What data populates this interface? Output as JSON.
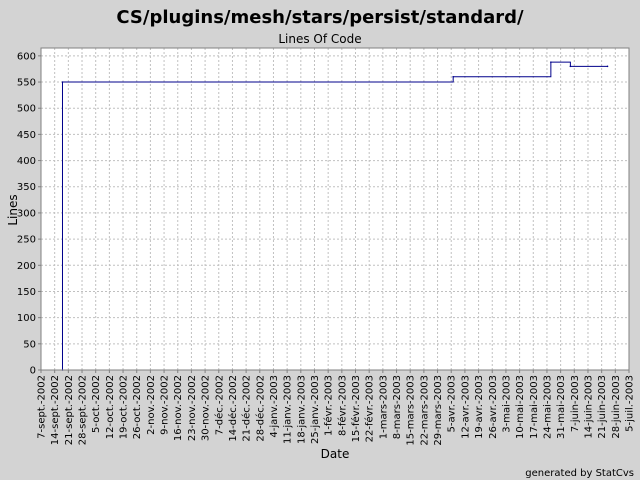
{
  "chart_data": {
    "type": "line",
    "title": "CS/plugins/mesh/stars/persist/standard/",
    "subtitle": "Lines Of Code",
    "xlabel": "Date",
    "ylabel": "Lines",
    "footer": "generated by StatCvs",
    "ylim": [
      0,
      615
    ],
    "yticks": [
      0,
      50,
      100,
      150,
      200,
      250,
      300,
      350,
      400,
      450,
      500,
      550,
      600
    ],
    "xlim": [
      "2002-09-07",
      "2003-07-05"
    ],
    "x_ticks": [
      {
        "date": "2002-09-07",
        "label": "7-sept.-2002"
      },
      {
        "date": "2002-09-14",
        "label": "14-sept.-2002"
      },
      {
        "date": "2002-09-21",
        "label": "21-sept.-2002"
      },
      {
        "date": "2002-09-28",
        "label": "28-sept.-2002"
      },
      {
        "date": "2002-10-05",
        "label": "5-oct.-2002"
      },
      {
        "date": "2002-10-12",
        "label": "12-oct.-2002"
      },
      {
        "date": "2002-10-19",
        "label": "19-oct.-2002"
      },
      {
        "date": "2002-10-26",
        "label": "26-oct.-2002"
      },
      {
        "date": "2002-11-02",
        "label": "2-nov.-2002"
      },
      {
        "date": "2002-11-09",
        "label": "9-nov.-2002"
      },
      {
        "date": "2002-11-16",
        "label": "16-nov.-2002"
      },
      {
        "date": "2002-11-23",
        "label": "23-nov.-2002"
      },
      {
        "date": "2002-11-30",
        "label": "30-nov.-2002"
      },
      {
        "date": "2002-12-07",
        "label": "7-déc.-2002"
      },
      {
        "date": "2002-12-14",
        "label": "14-déc.-2002"
      },
      {
        "date": "2002-12-21",
        "label": "21-déc.-2002"
      },
      {
        "date": "2002-12-28",
        "label": "28-déc.-2002"
      },
      {
        "date": "2003-01-04",
        "label": "4-janv.-2003"
      },
      {
        "date": "2003-01-11",
        "label": "11-janv.-2003"
      },
      {
        "date": "2003-01-18",
        "label": "18-janv.-2003"
      },
      {
        "date": "2003-01-25",
        "label": "25-janv.-2003"
      },
      {
        "date": "2003-02-01",
        "label": "1-févr.-2003"
      },
      {
        "date": "2003-02-08",
        "label": "8-févr.-2003"
      },
      {
        "date": "2003-02-15",
        "label": "15-févr.-2003"
      },
      {
        "date": "2003-02-22",
        "label": "22-févr.-2003"
      },
      {
        "date": "2003-03-01",
        "label": "1-mars-2003"
      },
      {
        "date": "2003-03-08",
        "label": "8-mars-2003"
      },
      {
        "date": "2003-03-15",
        "label": "15-mars-2003"
      },
      {
        "date": "2003-03-22",
        "label": "22-mars-2003"
      },
      {
        "date": "2003-03-29",
        "label": "29-mars-2003"
      },
      {
        "date": "2003-04-05",
        "label": "5-avr.-2003"
      },
      {
        "date": "2003-04-12",
        "label": "12-avr.-2003"
      },
      {
        "date": "2003-04-19",
        "label": "19-avr.-2003"
      },
      {
        "date": "2003-04-26",
        "label": "26-avr.-2003"
      },
      {
        "date": "2003-05-03",
        "label": "3-mai-2003"
      },
      {
        "date": "2003-05-10",
        "label": "10-mai-2003"
      },
      {
        "date": "2003-05-17",
        "label": "17-mai-2003"
      },
      {
        "date": "2003-05-24",
        "label": "24-mai-2003"
      },
      {
        "date": "2003-05-31",
        "label": "31-mai-2003"
      },
      {
        "date": "2003-06-07",
        "label": "7-juin-2003"
      },
      {
        "date": "2003-06-14",
        "label": "14-juin-2003"
      },
      {
        "date": "2003-06-21",
        "label": "21-juin-2003"
      },
      {
        "date": "2003-06-28",
        "label": "28-juin-2003"
      },
      {
        "date": "2003-07-05",
        "label": "5-juil.-2003"
      }
    ],
    "series": [
      {
        "color": "#00008b",
        "step": true,
        "points": [
          {
            "x": "2002-09-18",
            "y": 0
          },
          {
            "x": "2002-09-18",
            "y": 550
          },
          {
            "x": "2003-04-06",
            "y": 560
          },
          {
            "x": "2003-05-26",
            "y": 588
          },
          {
            "x": "2003-06-05",
            "y": 580
          },
          {
            "x": "2003-06-24",
            "y": 580
          }
        ]
      }
    ],
    "grid": true,
    "background": "#ffffff",
    "frame_color": "#d3d3d3"
  }
}
